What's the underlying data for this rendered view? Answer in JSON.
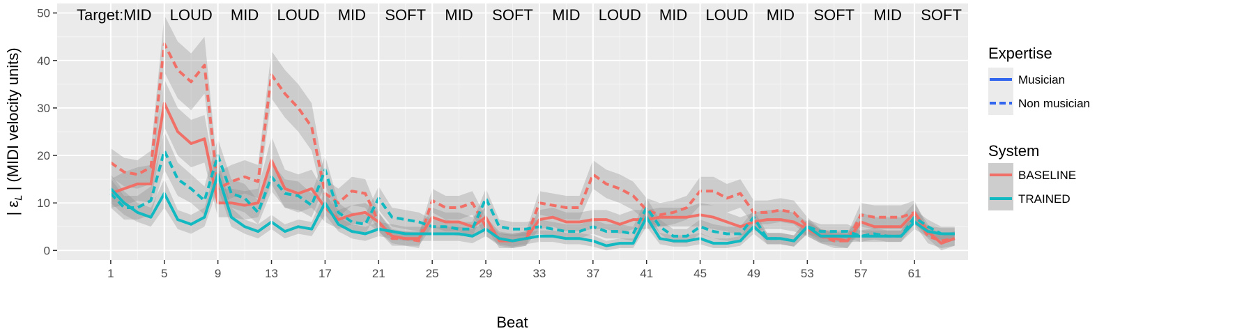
{
  "chart_data": {
    "type": "line",
    "xlabel": "Beat",
    "ylabel_main": "| ε",
    "ylabel_sub": "L",
    "ylabel_rest": " | (MIDI velocity units)",
    "xlim": [
      -3,
      65
    ],
    "ylim": [
      -2,
      52
    ],
    "x_ticks": [
      1,
      5,
      9,
      13,
      17,
      21,
      25,
      29,
      33,
      37,
      41,
      45,
      49,
      53,
      57,
      61
    ],
    "y_ticks": [
      0,
      10,
      20,
      30,
      40,
      50
    ],
    "grid": true,
    "panel_background": "#ebebeb",
    "target_label": "Target:",
    "target_sections": [
      {
        "label": "MID",
        "start": 1,
        "end": 5
      },
      {
        "label": "LOUD",
        "start": 5,
        "end": 9
      },
      {
        "label": "MID",
        "start": 9,
        "end": 13
      },
      {
        "label": "LOUD",
        "start": 13,
        "end": 17
      },
      {
        "label": "MID",
        "start": 17,
        "end": 21
      },
      {
        "label": "SOFT",
        "start": 21,
        "end": 25
      },
      {
        "label": "MID",
        "start": 25,
        "end": 29
      },
      {
        "label": "SOFT",
        "start": 29,
        "end": 33
      },
      {
        "label": "MID",
        "start": 33,
        "end": 37
      },
      {
        "label": "LOUD",
        "start": 37,
        "end": 41
      },
      {
        "label": "MID",
        "start": 41,
        "end": 45
      },
      {
        "label": "LOUD",
        "start": 45,
        "end": 49
      },
      {
        "label": "MID",
        "start": 49,
        "end": 53
      },
      {
        "label": "SOFT",
        "start": 53,
        "end": 57
      },
      {
        "label": "MID",
        "start": 57,
        "end": 61
      },
      {
        "label": "SOFT",
        "start": 61,
        "end": 65
      }
    ],
    "legend": {
      "placement": "right",
      "expertise_title": "Expertise",
      "expertise_items": [
        {
          "label": "Musician",
          "dash": "solid",
          "color": "#3366ee"
        },
        {
          "label": "Non musician",
          "dash": "dashed",
          "color": "#3366ee"
        }
      ],
      "system_title": "System",
      "system_items": [
        {
          "label": "BASELINE",
          "color": "#f07068"
        },
        {
          "label": "TRAINED",
          "color": "#12b9c1"
        }
      ]
    },
    "x": [
      1,
      2,
      3,
      4,
      5,
      6,
      7,
      8,
      9,
      10,
      11,
      12,
      13,
      14,
      15,
      16,
      17,
      18,
      19,
      20,
      21,
      22,
      23,
      24,
      25,
      26,
      27,
      28,
      29,
      30,
      31,
      32,
      33,
      34,
      35,
      36,
      37,
      38,
      39,
      40,
      41,
      42,
      43,
      44,
      45,
      46,
      47,
      48,
      49,
      50,
      51,
      52,
      53,
      54,
      55,
      56,
      57,
      58,
      59,
      60,
      61,
      62,
      63,
      64
    ],
    "series": [
      {
        "system": "BASELINE",
        "expertise": "Musician",
        "color": "#f07068",
        "dash": "solid",
        "values": [
          12,
          13,
          14,
          14,
          31,
          25,
          22.5,
          23.5,
          10,
          10,
          9.5,
          10,
          19,
          13,
          12,
          13,
          9,
          6.5,
          7.5,
          8,
          6,
          3,
          2.5,
          2.5,
          7,
          6,
          6,
          5,
          7,
          2,
          2,
          2.5,
          6.5,
          7,
          6,
          6,
          6.5,
          6.5,
          5.5,
          6.5,
          6.5,
          7,
          7,
          7,
          7.5,
          7,
          6,
          5,
          6,
          6.5,
          6.5,
          6,
          4.5,
          3,
          2.5,
          2,
          6,
          5,
          5,
          5,
          8,
          4,
          1.5,
          2.5
        ],
        "ci": [
          3,
          3.5,
          3.5,
          4,
          5,
          5,
          5,
          5,
          3,
          3,
          3,
          3,
          5,
          4,
          4,
          4,
          3,
          2,
          2,
          2,
          2,
          1.5,
          1.5,
          1.5,
          2,
          2,
          2,
          2,
          2,
          1.5,
          1.5,
          1.5,
          2,
          2,
          2,
          2,
          2,
          2,
          2,
          2,
          2,
          2,
          2,
          2,
          2.5,
          2.5,
          2,
          2,
          2,
          2,
          2,
          2,
          1.5,
          1.5,
          1.5,
          1.5,
          2,
          2,
          2,
          2,
          2,
          1.5,
          1.5,
          1.5
        ]
      },
      {
        "system": "BASELINE",
        "expertise": "Non musician",
        "color": "#f07068",
        "dash": "dashed",
        "values": [
          18.5,
          16.5,
          16,
          17.5,
          43.5,
          38,
          35.5,
          39,
          13,
          14.5,
          15.5,
          14.5,
          37,
          33,
          30,
          26,
          12,
          10,
          12.5,
          12,
          6,
          2.5,
          2.5,
          2,
          10.5,
          9,
          9,
          10,
          5,
          2.5,
          2,
          2.5,
          10,
          9.5,
          9,
          9,
          16,
          14,
          13,
          11.5,
          8.5,
          7.5,
          8,
          9,
          12.5,
          12.5,
          11,
          12,
          8,
          8,
          8.5,
          8,
          5,
          3,
          2,
          2,
          7.5,
          7,
          7,
          7,
          8,
          3,
          2,
          2.5
        ],
        "ci": [
          3,
          3,
          3,
          3.5,
          6,
          6,
          6,
          6,
          3.5,
          3.5,
          3.5,
          3.5,
          5,
          5,
          5,
          5,
          3,
          3,
          3,
          3,
          2,
          1.5,
          1.5,
          1.5,
          2.5,
          2.5,
          2.5,
          2.5,
          2,
          1.5,
          1.5,
          1.5,
          2.5,
          2.5,
          2.5,
          2.5,
          3,
          3,
          3,
          3,
          2.5,
          2.5,
          2.5,
          2.5,
          3,
          3,
          3,
          3,
          2.5,
          2.5,
          2.5,
          2.5,
          2,
          1.5,
          1.5,
          1.5,
          2.5,
          2.5,
          2.5,
          2.5,
          2.5,
          1.5,
          1.5,
          1.5
        ]
      },
      {
        "system": "TRAINED",
        "expertise": "Musician",
        "color": "#12b9c1",
        "dash": "solid",
        "values": [
          13,
          10,
          8,
          7,
          12,
          6.5,
          5.5,
          7,
          16,
          7,
          5,
          4,
          6,
          4,
          5,
          4.5,
          10,
          5.5,
          4,
          3.5,
          4.5,
          4,
          3.5,
          3.5,
          3.5,
          3.5,
          3.5,
          3,
          4.5,
          2.5,
          2,
          2.5,
          3,
          3,
          2.5,
          2.5,
          2,
          1,
          1.5,
          1.5,
          7,
          2.5,
          2,
          2,
          2.5,
          1.5,
          1.5,
          2,
          5,
          2.5,
          2.5,
          2,
          5,
          3,
          3,
          3,
          3,
          3,
          3,
          3,
          6,
          4,
          3.5,
          3.5
        ],
        "ci": [
          3,
          2.5,
          2,
          2,
          3,
          2,
          2,
          2,
          3,
          2,
          1.5,
          1.5,
          1.5,
          1.5,
          1.5,
          1.5,
          2.5,
          1.5,
          1.5,
          1.5,
          1.5,
          1.5,
          1.5,
          1.5,
          1.5,
          1.5,
          1.5,
          1.5,
          1.5,
          1.2,
          1.2,
          1.2,
          1.2,
          1.2,
          1.2,
          1.2,
          1.2,
          1,
          1,
          1,
          2,
          1.2,
          1.2,
          1.2,
          1.2,
          1,
          1,
          1,
          1.5,
          1.2,
          1.2,
          1.2,
          1.5,
          1.2,
          1.2,
          1.2,
          1.2,
          1.2,
          1.2,
          1.2,
          1.5,
          1.2,
          1.2,
          1.2
        ]
      },
      {
        "system": "TRAINED",
        "expertise": "Non musician",
        "color": "#12b9c1",
        "dash": "dashed",
        "values": [
          12,
          9,
          9,
          10.5,
          21,
          15,
          13,
          10.5,
          20,
          12,
          11,
          8,
          15.5,
          12,
          11.5,
          9.5,
          17,
          8,
          6,
          5.5,
          11,
          7,
          6.5,
          6,
          5,
          5,
          4.5,
          4.5,
          11,
          5,
          4.5,
          4.5,
          5,
          4.5,
          4,
          4,
          5,
          4,
          4,
          3.5,
          9,
          5,
          3,
          3,
          5,
          4,
          3.5,
          3.5,
          7,
          2.5,
          2.5,
          2,
          5,
          4,
          4,
          4,
          3,
          3.5,
          3,
          3,
          7,
          5,
          3.5,
          3.5
        ],
        "ci": [
          3,
          2.5,
          2.5,
          3,
          4,
          3.5,
          3,
          3,
          3.5,
          3,
          3,
          2.5,
          3,
          3,
          3,
          2.5,
          3,
          2,
          2,
          2,
          2.5,
          2,
          2,
          2,
          1.5,
          1.5,
          1.5,
          1.5,
          2,
          1.5,
          1.5,
          1.5,
          1.5,
          1.5,
          1.5,
          1.5,
          1.5,
          1.5,
          1.5,
          1.5,
          2,
          1.5,
          1.5,
          1.5,
          1.5,
          1.5,
          1.5,
          1.5,
          1.5,
          1.2,
          1.2,
          1.2,
          1.5,
          1.5,
          1.5,
          1.5,
          1.2,
          1.2,
          1.2,
          1.2,
          1.5,
          1.5,
          1.5,
          1.5
        ]
      }
    ]
  }
}
